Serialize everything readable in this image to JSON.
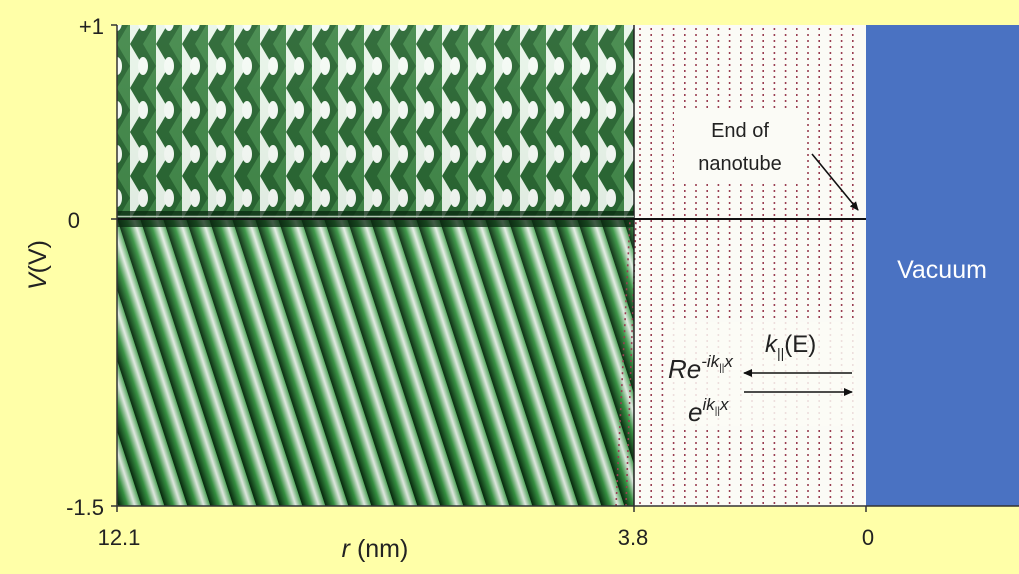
{
  "chart_data": {
    "type": "heatmap",
    "title": "",
    "xlabel": {
      "var": "r",
      "unit": " (nm)"
    },
    "ylabel": {
      "var": "V",
      "unit": "(V)"
    },
    "x_axis": {
      "ticks": [
        "12.1",
        "3.8",
        "0"
      ],
      "reversed": true
    },
    "y_axis": {
      "ticks": [
        "+1",
        "0",
        "-1.5"
      ],
      "ylim": [
        -1.5,
        1
      ]
    },
    "nanotube_region_r_nm": [
      12.1,
      3.8
    ],
    "vacuum_label": "Vacuum",
    "annotations": {
      "end_of_nanotube": [
        "End of",
        "nanotube"
      ],
      "k_label": "k",
      "k_sub": "||",
      "k_arg": "(E)",
      "reflected_wave": {
        "base": "Re",
        "exp": "-ik",
        "exp_sub": "||",
        "exp_tail": "x"
      },
      "incident_wave": {
        "base": "e",
        "exp": "ik",
        "exp_sub": "||",
        "exp_tail": "x"
      }
    },
    "colors": {
      "background": "#ffffa8",
      "stripe_dark": "#06280d",
      "stripe_mid": "#3a9c46",
      "stripe_light": "#f2faf2",
      "dotted_lines": "#9a3e52",
      "vacuum": "#4a72c2"
    },
    "grid": false
  }
}
